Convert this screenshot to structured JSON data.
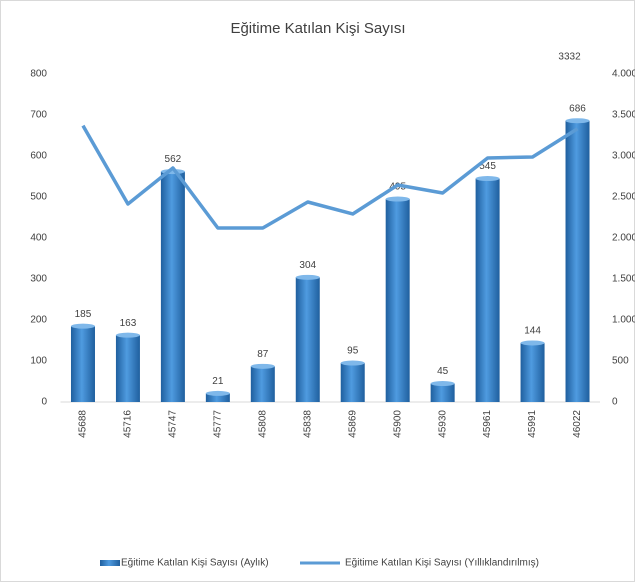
{
  "chart_data": {
    "type": "bar_line",
    "title": "Eğitime Katılan Kişi Sayısı",
    "categories": [
      "45688",
      "45716",
      "45747",
      "45777",
      "45808",
      "45838",
      "45869",
      "45900",
      "45930",
      "45961",
      "45991",
      "46022"
    ],
    "series": [
      {
        "name": "Eğitime Katılan Kişi Sayısı (Aylık)",
        "type": "bar",
        "color": "#2e75b6",
        "values": [
          185,
          163,
          562,
          21,
          87,
          304,
          95,
          495,
          45,
          545,
          144,
          686
        ]
      },
      {
        "name": "Eğitime Katılan Kişi Sayısı (Yıllıklandırılmış)",
        "type": "line",
        "axis": "y2",
        "color": "#5b9bd5",
        "values": [
          3370,
          2415,
          2854,
          2122,
          2122,
          2439,
          2293,
          2646,
          2549,
          2976,
          2988,
          3332
        ],
        "value_labels": [
          null,
          null,
          null,
          null,
          null,
          null,
          null,
          null,
          null,
          null,
          null,
          "3332"
        ]
      }
    ],
    "ylim": [
      0,
      800
    ],
    "yticks": [
      0,
      100,
      200,
      300,
      400,
      500,
      600,
      700,
      800
    ],
    "y2lim": [
      0,
      4000
    ],
    "y2ticks": [
      0,
      500,
      {
        "value": 1000,
        "label": "1.000"
      },
      {
        "value": 1500,
        "label": "1.500"
      },
      {
        "value": 2000,
        "label": "2.000"
      },
      {
        "value": 2500,
        "label": "2.500"
      },
      {
        "value": 3000,
        "label": "3.000"
      },
      {
        "value": 3500,
        "label": "3.500"
      },
      {
        "value": 4000,
        "label": "4.000"
      }
    ],
    "grid": false,
    "legend": "bottom"
  }
}
